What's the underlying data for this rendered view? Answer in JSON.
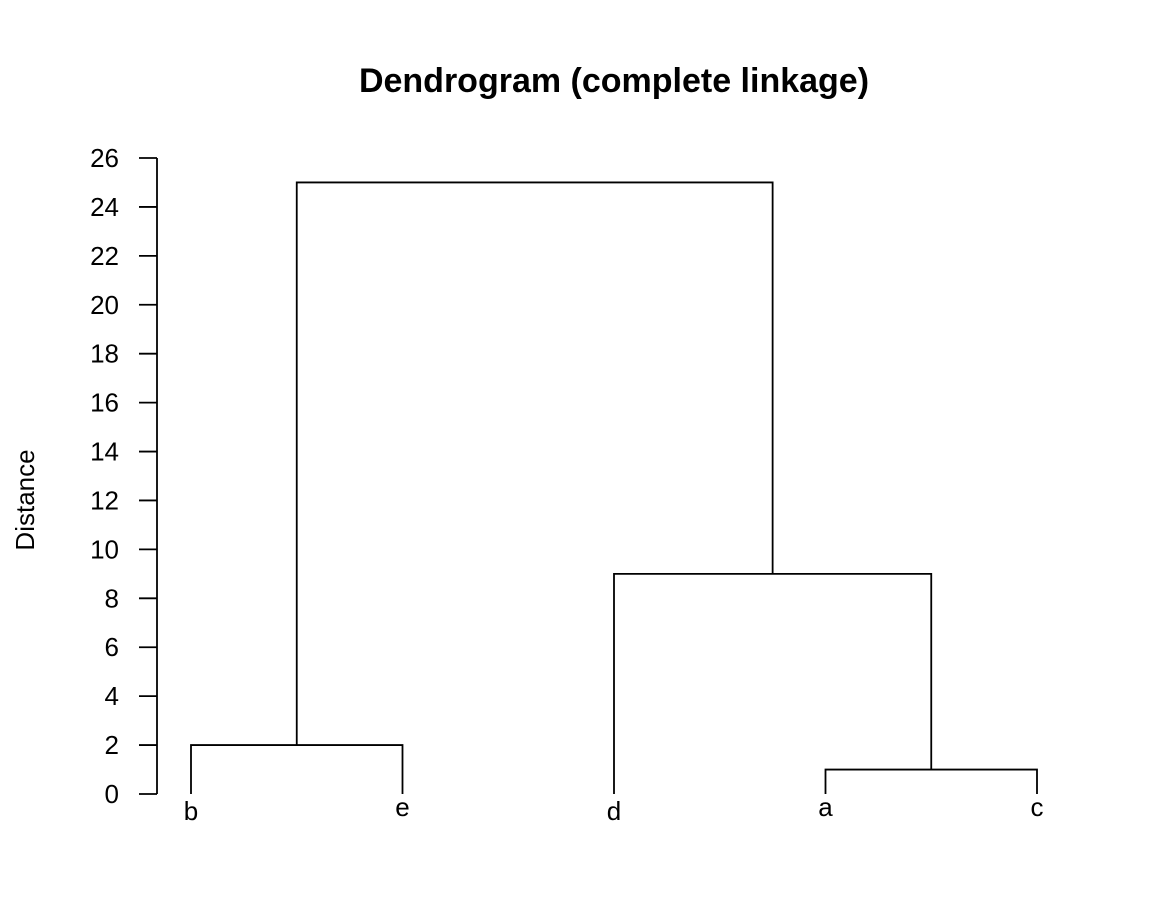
{
  "chart_data": {
    "type": "dendrogram",
    "title": "Dendrogram (complete linkage)",
    "ylabel": "Distance",
    "xlabel": "",
    "ylim": [
      0,
      26
    ],
    "yticks": [
      0,
      2,
      4,
      6,
      8,
      10,
      12,
      14,
      16,
      18,
      20,
      22,
      24,
      26
    ],
    "leaves": [
      "b",
      "e",
      "d",
      "a",
      "c"
    ],
    "merges": [
      {
        "left": "a",
        "right": "c",
        "height": 1
      },
      {
        "left": "b",
        "right": "e",
        "height": 2
      },
      {
        "left": "d",
        "right": "a+c",
        "height": 9
      },
      {
        "left": "b+e",
        "right": "d+a+c",
        "height": 25
      }
    ],
    "grid": false
  }
}
